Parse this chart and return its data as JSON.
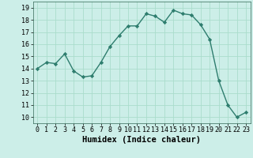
{
  "x": [
    0,
    1,
    2,
    3,
    4,
    5,
    6,
    7,
    8,
    9,
    10,
    11,
    12,
    13,
    14,
    15,
    16,
    17,
    18,
    19,
    20,
    21,
    22,
    23
  ],
  "y": [
    14.0,
    14.5,
    14.4,
    15.2,
    13.8,
    13.3,
    13.4,
    14.5,
    15.8,
    16.7,
    17.5,
    17.5,
    18.5,
    18.3,
    17.8,
    18.8,
    18.5,
    18.4,
    17.6,
    16.4,
    13.0,
    11.0,
    10.0,
    10.4
  ],
  "line_color": "#2e7d6e",
  "marker": "D",
  "marker_size": 2.2,
  "line_width": 1.0,
  "xlabel": "Humidex (Indice chaleur)",
  "xlim": [
    -0.5,
    23.5
  ],
  "ylim": [
    9.5,
    19.5
  ],
  "yticks": [
    10,
    11,
    12,
    13,
    14,
    15,
    16,
    17,
    18,
    19
  ],
  "xticks": [
    0,
    1,
    2,
    3,
    4,
    5,
    6,
    7,
    8,
    9,
    10,
    11,
    12,
    13,
    14,
    15,
    16,
    17,
    18,
    19,
    20,
    21,
    22,
    23
  ],
  "bg_color": "#cceee8",
  "grid_color": "#aaddcc",
  "xlabel_fontsize": 7.5,
  "tick_fontsize": 6.0
}
